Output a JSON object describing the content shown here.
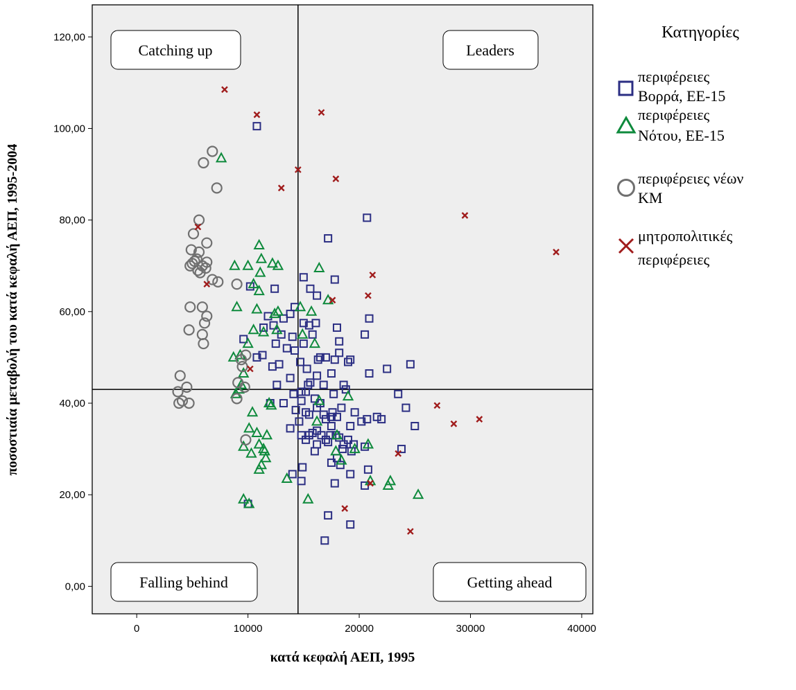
{
  "chart_data": {
    "type": "scatter",
    "xlabel": "κατά κεφαλή ΑΕΠ, 1995",
    "ylabel": "ποσοστιαία μεταβολή του κατά κεφαλή ΑΕΠ, 1995-2004",
    "xlim": [
      -4000,
      41000
    ],
    "ylim": [
      -6,
      127
    ],
    "x_ticks": [
      0,
      10000,
      20000,
      30000,
      40000
    ],
    "x_tick_labels": [
      "0",
      "10000",
      "20000",
      "30000",
      "40000"
    ],
    "y_ticks": [
      0,
      20,
      40,
      60,
      80,
      100,
      120
    ],
    "y_tick_labels": [
      "0,00",
      "20,00",
      "40,00",
      "60,00",
      "80,00",
      "100,00",
      "120,00"
    ],
    "reference_lines": {
      "x": 14500,
      "y": 43
    },
    "grid": false,
    "legend": {
      "title": "Κατηγορίες",
      "placement": "outside-right",
      "entries": [
        {
          "lines": [
            "περιφέρειες",
            "Βορρά, ΕΕ-15"
          ]
        },
        {
          "lines": [
            "περιφέρειες",
            "Νότου, ΕΕ-15"
          ]
        },
        {
          "lines": [
            "περιφέρειες νέων",
            "ΚΜ"
          ]
        },
        {
          "lines": [
            "μητροπολιτικές",
            "περιφέρειες"
          ]
        }
      ]
    },
    "quadrant_labels": {
      "top_left": "Catching up",
      "top_right": "Leaders",
      "bottom_left": "Falling behind",
      "bottom_right": "Getting ahead"
    },
    "series": [
      {
        "marker": "square",
        "color": "#2b2e83",
        "points": [
          [
            10800,
            100.5
          ],
          [
            20700,
            80.5
          ],
          [
            17200,
            76
          ],
          [
            10200,
            65.5
          ],
          [
            12400,
            65
          ],
          [
            14200,
            61
          ],
          [
            13800,
            59.5
          ],
          [
            14000,
            54.5
          ],
          [
            13000,
            55
          ],
          [
            11800,
            59
          ],
          [
            11300,
            50.5
          ],
          [
            9600,
            54
          ],
          [
            10800,
            50
          ],
          [
            12200,
            48
          ],
          [
            12800,
            48.5
          ],
          [
            15000,
            67.5
          ],
          [
            15600,
            65
          ],
          [
            17800,
            67
          ],
          [
            16200,
            63.5
          ],
          [
            15500,
            57
          ],
          [
            16100,
            57.5
          ],
          [
            15800,
            55
          ],
          [
            15000,
            53
          ],
          [
            16500,
            50
          ],
          [
            17000,
            50
          ],
          [
            18000,
            56.5
          ],
          [
            18200,
            53.5
          ],
          [
            18200,
            51
          ],
          [
            19000,
            49
          ],
          [
            19200,
            49.5
          ],
          [
            20500,
            55
          ],
          [
            20900,
            58.5
          ],
          [
            22500,
            47.5
          ],
          [
            24600,
            48.5
          ],
          [
            20900,
            46.5
          ],
          [
            17500,
            46.5
          ],
          [
            16200,
            46
          ],
          [
            15400,
            44
          ],
          [
            15200,
            42.5
          ],
          [
            16000,
            41
          ],
          [
            14800,
            40.5
          ],
          [
            14300,
            38.5
          ],
          [
            14600,
            36
          ],
          [
            14800,
            33
          ],
          [
            15200,
            32
          ],
          [
            15800,
            33.5
          ],
          [
            16200,
            34
          ],
          [
            16600,
            33
          ],
          [
            17000,
            32
          ],
          [
            17400,
            33
          ],
          [
            17900,
            33
          ],
          [
            18200,
            32.5
          ],
          [
            18600,
            31
          ],
          [
            17500,
            35
          ],
          [
            17000,
            36.5
          ],
          [
            17600,
            38
          ],
          [
            18000,
            37
          ],
          [
            18400,
            39
          ],
          [
            19200,
            35
          ],
          [
            19000,
            32
          ],
          [
            19500,
            31
          ],
          [
            20200,
            36
          ],
          [
            20700,
            36.5
          ],
          [
            22000,
            36.5
          ],
          [
            23500,
            42
          ],
          [
            24200,
            39
          ],
          [
            25000,
            35
          ],
          [
            23800,
            30
          ],
          [
            20500,
            30.5
          ],
          [
            20800,
            25.5
          ],
          [
            19200,
            24.5
          ],
          [
            18500,
            30
          ],
          [
            18000,
            28
          ],
          [
            17200,
            31.5
          ],
          [
            17500,
            27
          ],
          [
            20500,
            22
          ],
          [
            17800,
            22.5
          ],
          [
            17200,
            15.5
          ],
          [
            19200,
            13.5
          ],
          [
            16900,
            10
          ],
          [
            14800,
            23
          ],
          [
            14000,
            24.5
          ],
          [
            14900,
            26
          ],
          [
            10000,
            18
          ],
          [
            13800,
            34.5
          ],
          [
            13200,
            40
          ],
          [
            12000,
            40
          ],
          [
            14100,
            42
          ],
          [
            15200,
            38
          ],
          [
            16500,
            40
          ],
          [
            16800,
            37.5
          ],
          [
            13500,
            52
          ],
          [
            14200,
            51.5
          ],
          [
            14700,
            49
          ],
          [
            15300,
            47.5
          ],
          [
            16300,
            49.5
          ],
          [
            16800,
            44
          ],
          [
            17700,
            42
          ],
          [
            18800,
            43
          ],
          [
            12500,
            53
          ],
          [
            11400,
            56.5
          ],
          [
            12600,
            44
          ],
          [
            13800,
            45.5
          ],
          [
            15600,
            44.5
          ],
          [
            18600,
            44
          ],
          [
            16000,
            29.5
          ],
          [
            15500,
            33
          ],
          [
            17500,
            37
          ],
          [
            19600,
            38
          ],
          [
            21600,
            37
          ],
          [
            18300,
            26.5
          ],
          [
            19300,
            29.5
          ],
          [
            16200,
            31
          ],
          [
            12300,
            57
          ],
          [
            13200,
            58.5
          ],
          [
            15000,
            57.5
          ],
          [
            17800,
            49.5
          ],
          [
            16200,
            39
          ],
          [
            15500,
            37.5
          ],
          [
            14800,
            42.5
          ]
        ]
      },
      {
        "marker": "triangle",
        "color": "#0e8a3c",
        "points": [
          [
            7600,
            93.5
          ],
          [
            11000,
            74.5
          ],
          [
            11200,
            71.5
          ],
          [
            11100,
            68.5
          ],
          [
            10000,
            70
          ],
          [
            8800,
            70
          ],
          [
            12200,
            70.5
          ],
          [
            12700,
            70
          ],
          [
            10500,
            66
          ],
          [
            11000,
            64.5
          ],
          [
            16400,
            69.5
          ],
          [
            17200,
            62.5
          ],
          [
            9000,
            61
          ],
          [
            10800,
            60.5
          ],
          [
            12700,
            60
          ],
          [
            12400,
            59.5
          ],
          [
            14700,
            61
          ],
          [
            15700,
            60
          ],
          [
            14900,
            55
          ],
          [
            16000,
            53
          ],
          [
            12600,
            56
          ],
          [
            11400,
            55.5
          ],
          [
            10500,
            56
          ],
          [
            10000,
            53
          ],
          [
            9300,
            50.5
          ],
          [
            8700,
            50
          ],
          [
            9600,
            46.5
          ],
          [
            9400,
            44
          ],
          [
            9200,
            43
          ],
          [
            8900,
            42
          ],
          [
            11900,
            40
          ],
          [
            12100,
            39.5
          ],
          [
            10400,
            38
          ],
          [
            16400,
            40.5
          ],
          [
            19000,
            41.5
          ],
          [
            10100,
            34.5
          ],
          [
            10800,
            33.5
          ],
          [
            11700,
            33
          ],
          [
            11000,
            31
          ],
          [
            9600,
            30.5
          ],
          [
            11500,
            29.5
          ],
          [
            10300,
            29
          ],
          [
            11600,
            28
          ],
          [
            11200,
            26.5
          ],
          [
            11000,
            25.5
          ],
          [
            13500,
            23.5
          ],
          [
            15400,
            19
          ],
          [
            17900,
            29.5
          ],
          [
            18400,
            27.5
          ],
          [
            19600,
            30
          ],
          [
            20800,
            31
          ],
          [
            21000,
            23
          ],
          [
            22600,
            22
          ],
          [
            22800,
            23
          ],
          [
            25300,
            20
          ],
          [
            9600,
            19
          ],
          [
            10100,
            18
          ],
          [
            11400,
            30
          ],
          [
            16200,
            36
          ],
          [
            18000,
            33
          ]
        ]
      },
      {
        "marker": "circle",
        "color": "#707070",
        "points": [
          [
            6800,
            95
          ],
          [
            6000,
            92.5
          ],
          [
            7200,
            87
          ],
          [
            5600,
            80
          ],
          [
            5100,
            77
          ],
          [
            6300,
            75
          ],
          [
            5600,
            73
          ],
          [
            4900,
            73.5
          ],
          [
            5400,
            71.5
          ],
          [
            6300,
            70.8
          ],
          [
            5000,
            70.5
          ],
          [
            4800,
            70
          ],
          [
            5900,
            70
          ],
          [
            5500,
            69
          ],
          [
            5700,
            68.5
          ],
          [
            6200,
            69.5
          ],
          [
            7300,
            66.5
          ],
          [
            9000,
            66
          ],
          [
            4800,
            61
          ],
          [
            5900,
            61
          ],
          [
            6300,
            59
          ],
          [
            6100,
            57.5
          ],
          [
            4700,
            56
          ],
          [
            5900,
            55
          ],
          [
            6000,
            53
          ],
          [
            9800,
            50.5
          ],
          [
            9400,
            49.5
          ],
          [
            9100,
            44.5
          ],
          [
            9700,
            43.5
          ],
          [
            3900,
            46
          ],
          [
            4500,
            43.5
          ],
          [
            3700,
            42.5
          ],
          [
            4100,
            40.5
          ],
          [
            4700,
            40
          ],
          [
            3800,
            40
          ],
          [
            9000,
            41
          ],
          [
            9800,
            32
          ],
          [
            9500,
            48
          ],
          [
            6800,
            67
          ],
          [
            5200,
            71
          ]
        ]
      },
      {
        "marker": "x",
        "color": "#a01c1c",
        "points": [
          [
            7900,
            108.5
          ],
          [
            10800,
            103
          ],
          [
            16600,
            103.5
          ],
          [
            14500,
            91
          ],
          [
            17900,
            89
          ],
          [
            13000,
            87
          ],
          [
            29500,
            81
          ],
          [
            37700,
            73
          ],
          [
            5500,
            78.5
          ],
          [
            21200,
            68
          ],
          [
            6300,
            66
          ],
          [
            20800,
            63.5
          ],
          [
            17600,
            62.5
          ],
          [
            10200,
            47.5
          ],
          [
            27000,
            39.5
          ],
          [
            28500,
            35.5
          ],
          [
            30800,
            36.5
          ],
          [
            23500,
            29
          ],
          [
            21000,
            22.5
          ],
          [
            18700,
            17
          ],
          [
            24600,
            12
          ]
        ]
      }
    ]
  }
}
